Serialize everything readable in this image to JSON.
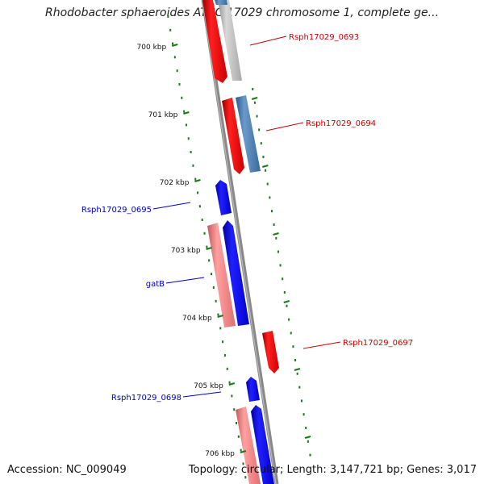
{
  "title": "Rhodobacter sphaeroides ATCC 17029 chromosome 1, complete ge...",
  "footer": {
    "accession": "Accession: NC_009049",
    "summary": "Topology: circular; Length: 3,147,721 bp; Genes: 3,017"
  },
  "ruler": {
    "ticks": [
      {
        "label": "700 kbp"
      },
      {
        "label": "701 kbp"
      },
      {
        "label": "702 kbp"
      },
      {
        "label": "703 kbp"
      },
      {
        "label": "704 kbp"
      },
      {
        "label": "705 kbp"
      },
      {
        "label": "706 kbp"
      }
    ]
  },
  "features": [
    {
      "label": "Rsph17029_0693",
      "strand": "forward",
      "color": "#cc0000"
    },
    {
      "label": "Rsph17029_0694",
      "strand": "forward",
      "color": "#cc0000"
    },
    {
      "label": "Rsph17029_0695",
      "strand": "reverse",
      "color": "#0000cc"
    },
    {
      "label": "gatB",
      "strand": "reverse",
      "color": "#0000cc"
    },
    {
      "label": "Rsph17029_0697",
      "strand": "forward",
      "color": "#cc0000"
    },
    {
      "label": "Rsph17029_0698",
      "strand": "reverse",
      "color": "#0000cc"
    }
  ],
  "colors": {
    "forward_cds": "#ff0000",
    "reverse_cds": "#0000ff",
    "forward_rna": "#b0b0b0",
    "reverse_rna": "#4477aa",
    "forward_gene_light": "#f08080",
    "backbone": "#888888",
    "ruler": "#1a7a1a"
  }
}
